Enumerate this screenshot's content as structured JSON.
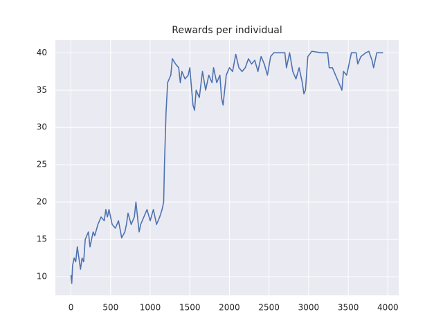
{
  "chart_data": {
    "type": "line",
    "title": "Rewards per individual",
    "x": [
      0,
      10,
      20,
      40,
      60,
      80,
      100,
      120,
      140,
      160,
      180,
      200,
      220,
      240,
      260,
      280,
      300,
      340,
      380,
      420,
      440,
      460,
      480,
      500,
      520,
      560,
      600,
      640,
      680,
      700,
      720,
      760,
      800,
      820,
      840,
      860,
      880,
      920,
      960,
      1000,
      1040,
      1080,
      1120,
      1150,
      1170,
      1180,
      1200,
      1220,
      1260,
      1280,
      1320,
      1360,
      1380,
      1400,
      1440,
      1480,
      1500,
      1540,
      1560,
      1580,
      1620,
      1660,
      1700,
      1740,
      1780,
      1800,
      1840,
      1880,
      1900,
      1920,
      1960,
      2000,
      2040,
      2080,
      2120,
      2160,
      2200,
      2240,
      2280,
      2320,
      2360,
      2400,
      2440,
      2480,
      2520,
      2560,
      2700,
      2720,
      2760,
      2800,
      2840,
      2880,
      2920,
      2940,
      2960,
      2990,
      3040,
      3160,
      3240,
      3260,
      3300,
      3340,
      3380,
      3420,
      3440,
      3480,
      3500,
      3540,
      3600,
      3620,
      3660,
      3720,
      3760,
      3800,
      3820,
      3860,
      3940
    ],
    "series": [
      {
        "color": "#4c72b0",
        "values": [
          10.2,
          9.1,
          11.5,
          12.5,
          12,
          14,
          12.5,
          11,
          12.5,
          12,
          15,
          15.5,
          16,
          14,
          15,
          16,
          15.5,
          17,
          18,
          17.5,
          19,
          18,
          19,
          18,
          17,
          16.5,
          17.5,
          15.2,
          16,
          17,
          18.5,
          17,
          18,
          20,
          18,
          16,
          17,
          18,
          19,
          17.5,
          19,
          17,
          18,
          19,
          20,
          25,
          32,
          36,
          37,
          39.2,
          38.5,
          38,
          36,
          37.5,
          36.5,
          37,
          38,
          33,
          32.3,
          35,
          34,
          37.5,
          35,
          37,
          36,
          38,
          36,
          37,
          34,
          33,
          37,
          38,
          37.5,
          39.8,
          38,
          37.5,
          38,
          39.2,
          38.5,
          39,
          37.5,
          39.5,
          38.5,
          37,
          39.5,
          40,
          40,
          38,
          40,
          37.5,
          36.5,
          38,
          36,
          34.5,
          35,
          39.5,
          40.2,
          40,
          40,
          38,
          38,
          37,
          36,
          35,
          37.5,
          37,
          38,
          40,
          40,
          38.5,
          39.5,
          40,
          40.2,
          39,
          38,
          40,
          40
        ]
      }
    ],
    "xlim": [
      -197,
      4137
    ],
    "ylim": [
      7.5,
      41.7
    ],
    "xticks": [
      0,
      500,
      1000,
      1500,
      2000,
      2500,
      3000,
      3500,
      4000
    ],
    "yticks": [
      10,
      15,
      20,
      25,
      30,
      35,
      40
    ],
    "grid": true
  }
}
